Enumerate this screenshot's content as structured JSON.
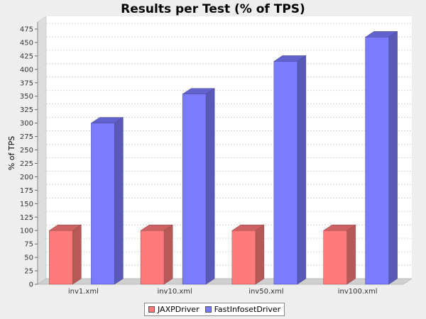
{
  "chart_data": {
    "type": "bar",
    "title": "Results per Test (% of TPS)",
    "xlabel": "",
    "ylabel": "% of TPS",
    "categories": [
      "inv1.xml",
      "inv10.xml",
      "inv50.xml",
      "inv100.xml"
    ],
    "series": [
      {
        "name": "JAXPDriver",
        "values": [
          100,
          100,
          100,
          100
        ],
        "color": "#ff7b7b"
      },
      {
        "name": "FastInfosetDriver",
        "values": [
          300,
          354,
          415,
          460
        ],
        "color": "#7b7bff"
      }
    ],
    "ylim": [
      0,
      490
    ],
    "yticks": [
      0,
      25,
      50,
      75,
      100,
      125,
      150,
      175,
      200,
      225,
      250,
      275,
      300,
      325,
      350,
      375,
      400,
      425,
      450,
      475
    ],
    "grid": true,
    "legend_position": "bottom",
    "style": "3d"
  }
}
